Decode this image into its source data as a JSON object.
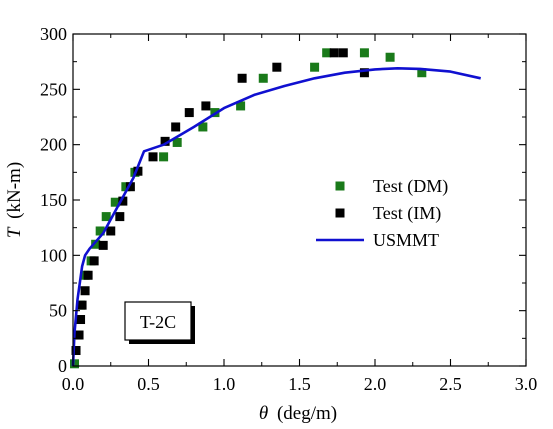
{
  "chart_data": {
    "type": "scatter",
    "tag_label": "T-2C",
    "x_axis": {
      "label_symbol": "θ",
      "label_unit": "(deg/m)",
      "min": 0,
      "max": 3.0,
      "ticks": [
        0.0,
        0.5,
        1.0,
        1.5,
        2.0,
        2.5,
        3.0
      ],
      "tick_labels": [
        "0.0",
        "0.5",
        "1.0",
        "1.5",
        "2.0",
        "2.5",
        "3.0"
      ]
    },
    "y_axis": {
      "label_symbol": "T",
      "label_unit": "(kN-m)",
      "min": 0,
      "max": 300,
      "ticks": [
        0,
        50,
        100,
        150,
        200,
        250,
        300
      ],
      "tick_labels": [
        "0",
        "50",
        "100",
        "150",
        "200",
        "250",
        "300"
      ]
    },
    "grid": false,
    "legend_position": "right",
    "series": [
      {
        "name": "Test (DM)",
        "kind": "square-marker",
        "color": "#1a7a1a",
        "points": [
          [
            0.01,
            2
          ],
          [
            0.03,
            28
          ],
          [
            0.05,
            55
          ],
          [
            0.08,
            82
          ],
          [
            0.12,
            95
          ],
          [
            0.15,
            110
          ],
          [
            0.18,
            122
          ],
          [
            0.22,
            135
          ],
          [
            0.28,
            148
          ],
          [
            0.35,
            162
          ],
          [
            0.41,
            175
          ],
          [
            0.6,
            189
          ],
          [
            0.69,
            202
          ],
          [
            0.86,
            216
          ],
          [
            0.94,
            229
          ],
          [
            1.11,
            235
          ],
          [
            1.26,
            260
          ],
          [
            1.6,
            270
          ],
          [
            1.68,
            283
          ],
          [
            1.93,
            283
          ],
          [
            2.1,
            279
          ],
          [
            2.31,
            265
          ]
        ]
      },
      {
        "name": "Test (IM)",
        "kind": "square-marker",
        "color": "#000000",
        "points": [
          [
            0.02,
            14
          ],
          [
            0.04,
            28
          ],
          [
            0.05,
            42
          ],
          [
            0.06,
            55
          ],
          [
            0.08,
            68
          ],
          [
            0.1,
            82
          ],
          [
            0.14,
            95
          ],
          [
            0.2,
            109
          ],
          [
            0.25,
            122
          ],
          [
            0.31,
            135
          ],
          [
            0.33,
            149
          ],
          [
            0.38,
            162
          ],
          [
            0.43,
            176
          ],
          [
            0.53,
            189
          ],
          [
            0.61,
            203
          ],
          [
            0.68,
            216
          ],
          [
            0.77,
            229
          ],
          [
            0.88,
            235
          ],
          [
            1.12,
            260
          ],
          [
            1.35,
            270
          ],
          [
            1.73,
            283
          ],
          [
            1.79,
            283
          ],
          [
            1.93,
            265
          ]
        ]
      },
      {
        "name": "USMMT",
        "kind": "line",
        "color": "#1010d0",
        "points": [
          [
            0.0,
            0
          ],
          [
            0.01,
            30
          ],
          [
            0.03,
            60
          ],
          [
            0.06,
            90
          ],
          [
            0.08,
            100
          ],
          [
            0.11,
            106
          ],
          [
            0.2,
            120
          ],
          [
            0.3,
            145
          ],
          [
            0.4,
            170
          ],
          [
            0.47,
            194
          ],
          [
            0.6,
            200
          ],
          [
            0.8,
            216
          ],
          [
            1.0,
            233
          ],
          [
            1.2,
            245
          ],
          [
            1.4,
            253
          ],
          [
            1.6,
            260
          ],
          [
            1.8,
            265
          ],
          [
            2.0,
            268
          ],
          [
            2.15,
            269
          ],
          [
            2.3,
            268.5
          ],
          [
            2.5,
            266
          ],
          [
            2.7,
            260
          ]
        ]
      }
    ]
  }
}
